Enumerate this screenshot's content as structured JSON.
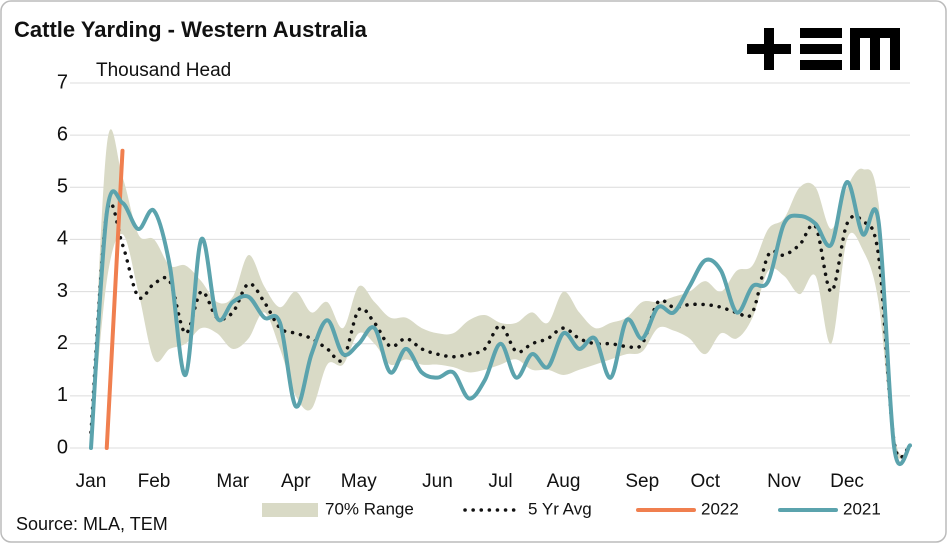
{
  "chart_data": {
    "type": "line",
    "title": "Cattle Yarding - Western Australia",
    "y_label": "Thousand Head",
    "source": "Source: MLA, TEM",
    "categories": [
      "Jan",
      null,
      null,
      null,
      "Feb",
      null,
      null,
      null,
      null,
      "Mar",
      null,
      null,
      null,
      "Apr",
      null,
      null,
      null,
      "May",
      null,
      null,
      null,
      null,
      "Jun",
      null,
      null,
      null,
      "Jul",
      null,
      null,
      null,
      "Aug",
      null,
      null,
      null,
      null,
      "Sep",
      null,
      null,
      null,
      "Oct",
      null,
      null,
      null,
      null,
      "Nov",
      null,
      null,
      null,
      "Dec",
      null,
      null,
      null,
      null
    ],
    "series": [
      {
        "name": "70% Range",
        "color": "#d9dac6",
        "low": [
          0,
          3.2,
          4.1,
          3.0,
          1.7,
          1.9,
          2.0,
          2.3,
          2.2,
          1.9,
          2.1,
          2.6,
          1.9,
          1.0,
          0.75,
          1.6,
          1.6,
          2.2,
          2.0,
          1.6,
          1.7,
          1.6,
          1.6,
          1.55,
          1.45,
          1.5,
          1.6,
          1.7,
          1.5,
          1.5,
          1.4,
          1.5,
          1.6,
          1.7,
          1.8,
          1.85,
          2.3,
          2.25,
          2.1,
          1.8,
          2.2,
          2.1,
          2.5,
          3.4,
          3.3,
          2.95,
          3.3,
          2.0,
          4.0,
          3.8,
          2.8,
          0,
          0
        ],
        "high": [
          0,
          5.8,
          5.2,
          4.1,
          4.0,
          3.5,
          3.5,
          3.2,
          2.8,
          2.9,
          3.7,
          3.1,
          2.7,
          3.0,
          2.6,
          2.8,
          2.3,
          3.1,
          2.8,
          2.5,
          2.5,
          2.3,
          2.2,
          2.2,
          2.45,
          2.55,
          2.4,
          2.4,
          2.6,
          2.4,
          3.0,
          2.6,
          2.3,
          2.4,
          2.5,
          2.8,
          2.8,
          2.9,
          3.0,
          3.2,
          3.0,
          3.4,
          3.5,
          4.2,
          4.4,
          5.0,
          5.0,
          4.2,
          5.0,
          5.35,
          4.7,
          0.3,
          0
        ]
      },
      {
        "name": "5 Yr Avg",
        "color": "#111111",
        "dotted": true,
        "values": [
          0.3,
          4.5,
          3.9,
          2.9,
          3.15,
          3.2,
          2.2,
          3.0,
          2.5,
          2.6,
          3.15,
          2.8,
          2.3,
          2.2,
          2.1,
          1.9,
          1.7,
          2.65,
          2.4,
          1.95,
          2.1,
          1.9,
          1.8,
          1.75,
          1.8,
          1.9,
          2.35,
          1.85,
          2.0,
          2.1,
          2.3,
          2.1,
          2.0,
          2.0,
          1.95,
          2.0,
          2.8,
          2.7,
          2.75,
          2.75,
          2.7,
          2.6,
          2.6,
          3.7,
          3.7,
          3.9,
          4.25,
          3.0,
          4.3,
          4.35,
          3.7,
          0.1,
          0.05
        ]
      },
      {
        "name": "2022",
        "color": "#f07f4f",
        "values": [
          null,
          0,
          5.7,
          null,
          null,
          null,
          null,
          null,
          null,
          null,
          null,
          null,
          null,
          null,
          null,
          null,
          null,
          null,
          null,
          null,
          null,
          null,
          null,
          null,
          null,
          null,
          null,
          null,
          null,
          null,
          null,
          null,
          null,
          null,
          null,
          null,
          null,
          null,
          null,
          null,
          null,
          null,
          null,
          null,
          null,
          null,
          null,
          null,
          null,
          null,
          null,
          null,
          null
        ]
      },
      {
        "name": "2021",
        "color": "#5ba3ad",
        "values": [
          0,
          4.5,
          4.7,
          4.2,
          4.55,
          3.5,
          1.4,
          4.0,
          2.5,
          2.8,
          2.9,
          2.5,
          2.4,
          0.8,
          1.8,
          2.45,
          1.8,
          2.0,
          2.3,
          1.45,
          1.9,
          1.45,
          1.35,
          1.45,
          0.95,
          1.3,
          2.0,
          1.35,
          1.8,
          1.55,
          2.2,
          1.9,
          2.1,
          1.35,
          2.45,
          2.1,
          2.7,
          2.6,
          3.1,
          3.6,
          3.4,
          2.6,
          3.1,
          3.2,
          4.3,
          4.45,
          4.3,
          3.9,
          5.1,
          4.1,
          4.35,
          0,
          0.05
        ]
      }
    ],
    "ylim": [
      0,
      7
    ],
    "yticks": [
      0,
      1,
      2,
      3,
      4,
      5,
      6,
      7
    ],
    "grid": true
  }
}
